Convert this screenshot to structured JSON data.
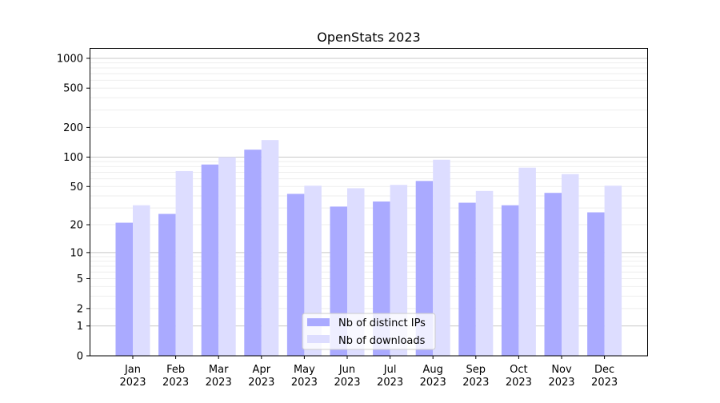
{
  "chart_data": {
    "type": "bar",
    "title": "OpenStats 2023",
    "xlabel": "",
    "ylabel": "",
    "yscale": "symlog (log10(1+y))",
    "ylim": [
      0,
      1200
    ],
    "yticks": [
      0,
      1,
      2,
      5,
      10,
      20,
      50,
      100,
      200,
      500,
      1000
    ],
    "ytick_labels": [
      "0",
      "1",
      "2",
      "5",
      "10",
      "20",
      "50",
      "100",
      "200",
      "500",
      "1000"
    ],
    "grid": true,
    "legend_position": "bottom-center",
    "categories": [
      "Jan\n2023",
      "Feb\n2023",
      "Mar\n2023",
      "Apr\n2023",
      "May\n2023",
      "Jun\n2023",
      "Jul\n2023",
      "Aug\n2023",
      "Sep\n2023",
      "Oct\n2023",
      "Nov\n2023",
      "Dec\n2023"
    ],
    "category_month": [
      "Jan",
      "Feb",
      "Mar",
      "Apr",
      "May",
      "Jun",
      "Jul",
      "Aug",
      "Sep",
      "Oct",
      "Nov",
      "Dec"
    ],
    "category_year": "2023",
    "series": [
      {
        "name": "Nb of distinct IPs",
        "color": "#aaaaff",
        "values": [
          21,
          26,
          84,
          119,
          42,
          31,
          35,
          57,
          34,
          32,
          43,
          27
        ]
      },
      {
        "name": "Nb of downloads",
        "color": "#ddddff",
        "values": [
          32,
          72,
          100,
          149,
          51,
          48,
          52,
          94,
          45,
          78,
          67,
          51
        ]
      }
    ]
  }
}
